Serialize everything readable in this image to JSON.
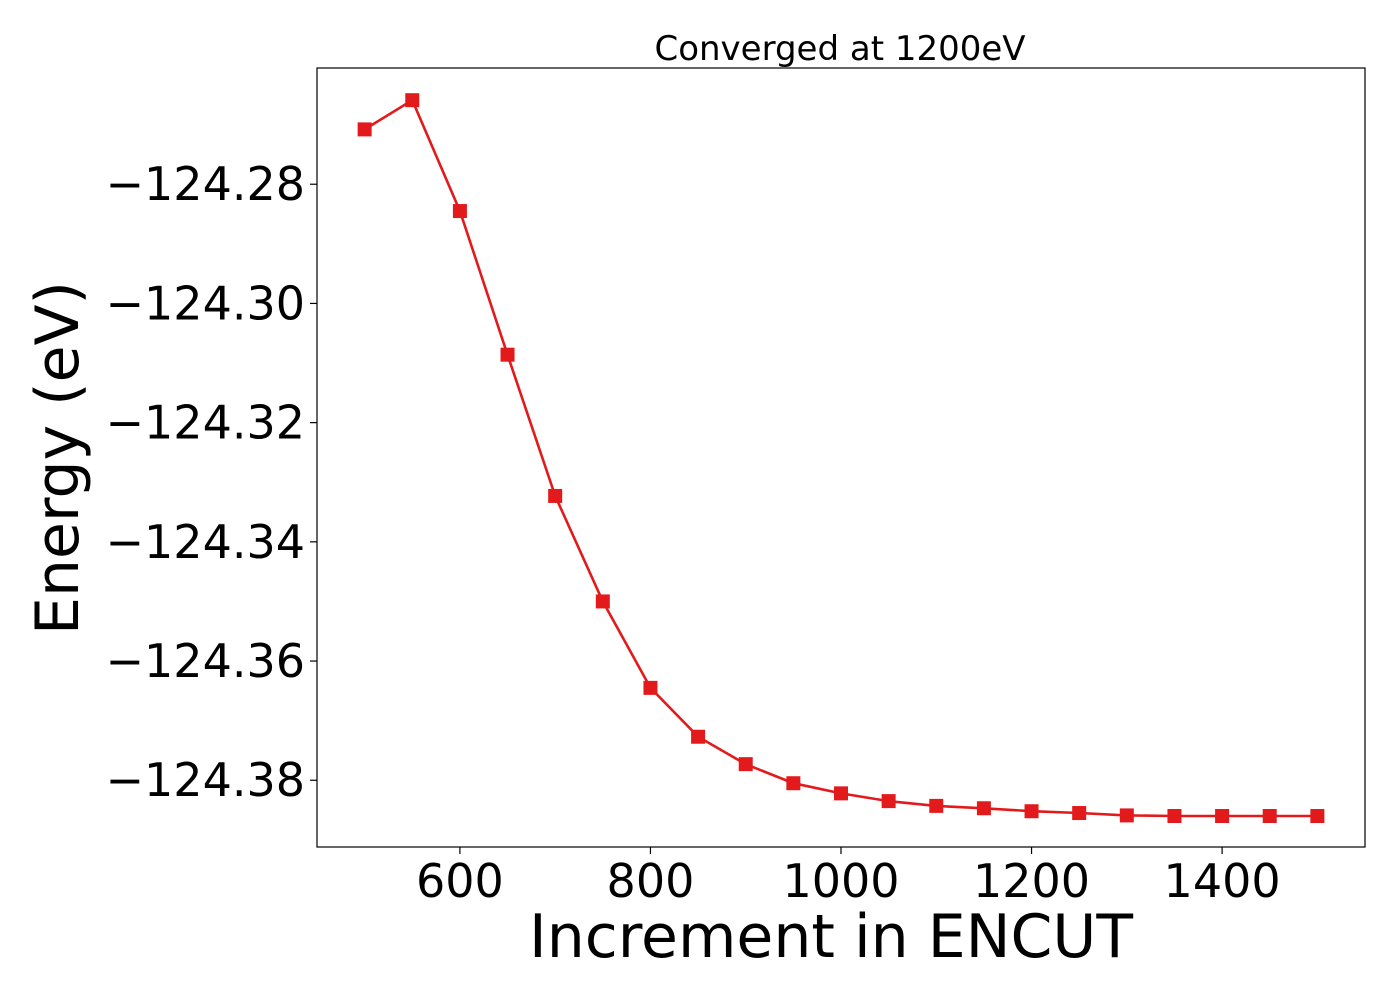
{
  "chart_data": {
    "type": "line",
    "title": "Converged at 1200eV",
    "xlabel": "Increment in ENCUT",
    "ylabel": "Energy (eV)",
    "xlim": [
      450,
      1550
    ],
    "ylim": [
      -124.3912,
      -124.2605
    ],
    "x_ticks": [
      600,
      800,
      1000,
      1200,
      1400
    ],
    "x_tick_labels": [
      "600",
      "800",
      "1000",
      "1200",
      "1400"
    ],
    "y_ticks": [
      -124.28,
      -124.3,
      -124.32,
      -124.34,
      -124.36,
      -124.38
    ],
    "y_tick_labels": [
      "−124.28",
      "−124.30",
      "−124.32",
      "−124.34",
      "−124.36",
      "−124.38"
    ],
    "grid": false,
    "legend": false,
    "series": [
      {
        "color": "#e31a1c",
        "marker": "square",
        "x": [
          500,
          550,
          600,
          650,
          700,
          750,
          800,
          850,
          900,
          950,
          1000,
          1050,
          1100,
          1150,
          1200,
          1250,
          1300,
          1350,
          1400,
          1450,
          1500
        ],
        "y": [
          -124.2708,
          -124.2659,
          -124.2845,
          -124.3086,
          -124.3323,
          -124.35,
          -124.3645,
          -124.3727,
          -124.3773,
          -124.3805,
          -124.3822,
          -124.3835,
          -124.3843,
          -124.3847,
          -124.3852,
          -124.3855,
          -124.3859,
          -124.386,
          -124.386,
          -124.386,
          -124.386
        ]
      }
    ]
  }
}
